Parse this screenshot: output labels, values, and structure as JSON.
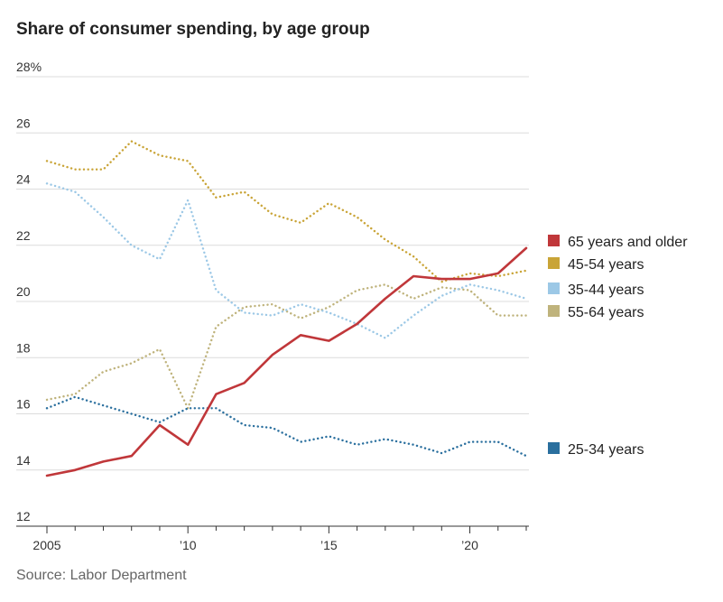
{
  "title": "Share of consumer spending, by age group",
  "source": "Source: Labor Department",
  "chart_data": {
    "type": "line",
    "title": "Share of consumer spending, by age group",
    "xlabel": "",
    "ylabel": "",
    "ylim": [
      12,
      28
    ],
    "xlim": [
      2005,
      2022
    ],
    "yticks": [
      12,
      14,
      16,
      18,
      20,
      22,
      24,
      26,
      28
    ],
    "ytick_labels": [
      "12",
      "14",
      "16",
      "18",
      "20",
      "22",
      "24",
      "26",
      "28%"
    ],
    "xticks": [
      2005,
      2010,
      2015,
      2020
    ],
    "xtick_labels": [
      "2005",
      "’10",
      "’15",
      "’20"
    ],
    "grid": "horizontal",
    "legend": "right",
    "x": [
      2005,
      2006,
      2007,
      2008,
      2009,
      2010,
      2011,
      2012,
      2013,
      2014,
      2015,
      2016,
      2017,
      2018,
      2019,
      2020,
      2021,
      2022
    ],
    "series": [
      {
        "name": "65 years and older",
        "color": "#c0373a",
        "style": "solid",
        "values": [
          13.8,
          14.0,
          14.3,
          14.5,
          15.6,
          14.9,
          16.7,
          17.1,
          18.1,
          18.8,
          18.6,
          19.2,
          20.1,
          20.9,
          20.8,
          20.8,
          21.0,
          21.9
        ]
      },
      {
        "name": "45-54 years",
        "color": "#c9a437",
        "style": "dotted",
        "values": [
          25.0,
          24.7,
          24.7,
          25.7,
          25.2,
          25.0,
          23.7,
          23.9,
          23.1,
          22.8,
          23.5,
          23.0,
          22.2,
          21.6,
          20.7,
          21.0,
          20.9,
          21.1
        ]
      },
      {
        "name": "35-44 years",
        "color": "#9cc8e6",
        "style": "dotted",
        "values": [
          24.2,
          23.9,
          23.0,
          22.0,
          21.5,
          23.6,
          20.4,
          19.6,
          19.5,
          19.9,
          19.6,
          19.2,
          18.7,
          19.5,
          20.2,
          20.6,
          20.4,
          20.1
        ]
      },
      {
        "name": "55-64 years",
        "color": "#bfb37c",
        "style": "dotted",
        "values": [
          16.5,
          16.7,
          17.5,
          17.8,
          18.3,
          16.2,
          19.1,
          19.8,
          19.9,
          19.4,
          19.8,
          20.4,
          20.6,
          20.1,
          20.5,
          20.4,
          19.5,
          19.5
        ]
      },
      {
        "name": "25-34 years",
        "color": "#2a6f9e",
        "style": "dotted",
        "values": [
          16.2,
          16.6,
          16.3,
          16.0,
          15.7,
          16.2,
          16.2,
          15.6,
          15.5,
          15.0,
          15.2,
          14.9,
          15.1,
          14.9,
          14.6,
          15.0,
          15.0,
          14.5
        ]
      }
    ],
    "legend_entries": [
      {
        "label": "65 years and older",
        "color": "#c0373a"
      },
      {
        "label": "45-54 years",
        "color": "#c9a437"
      },
      {
        "label": "35-44 years",
        "color": "#9cc8e6"
      },
      {
        "label": "55-64 years",
        "color": "#bfb37c"
      },
      {
        "label": "25-34 years",
        "color": "#2a6f9e"
      }
    ]
  }
}
